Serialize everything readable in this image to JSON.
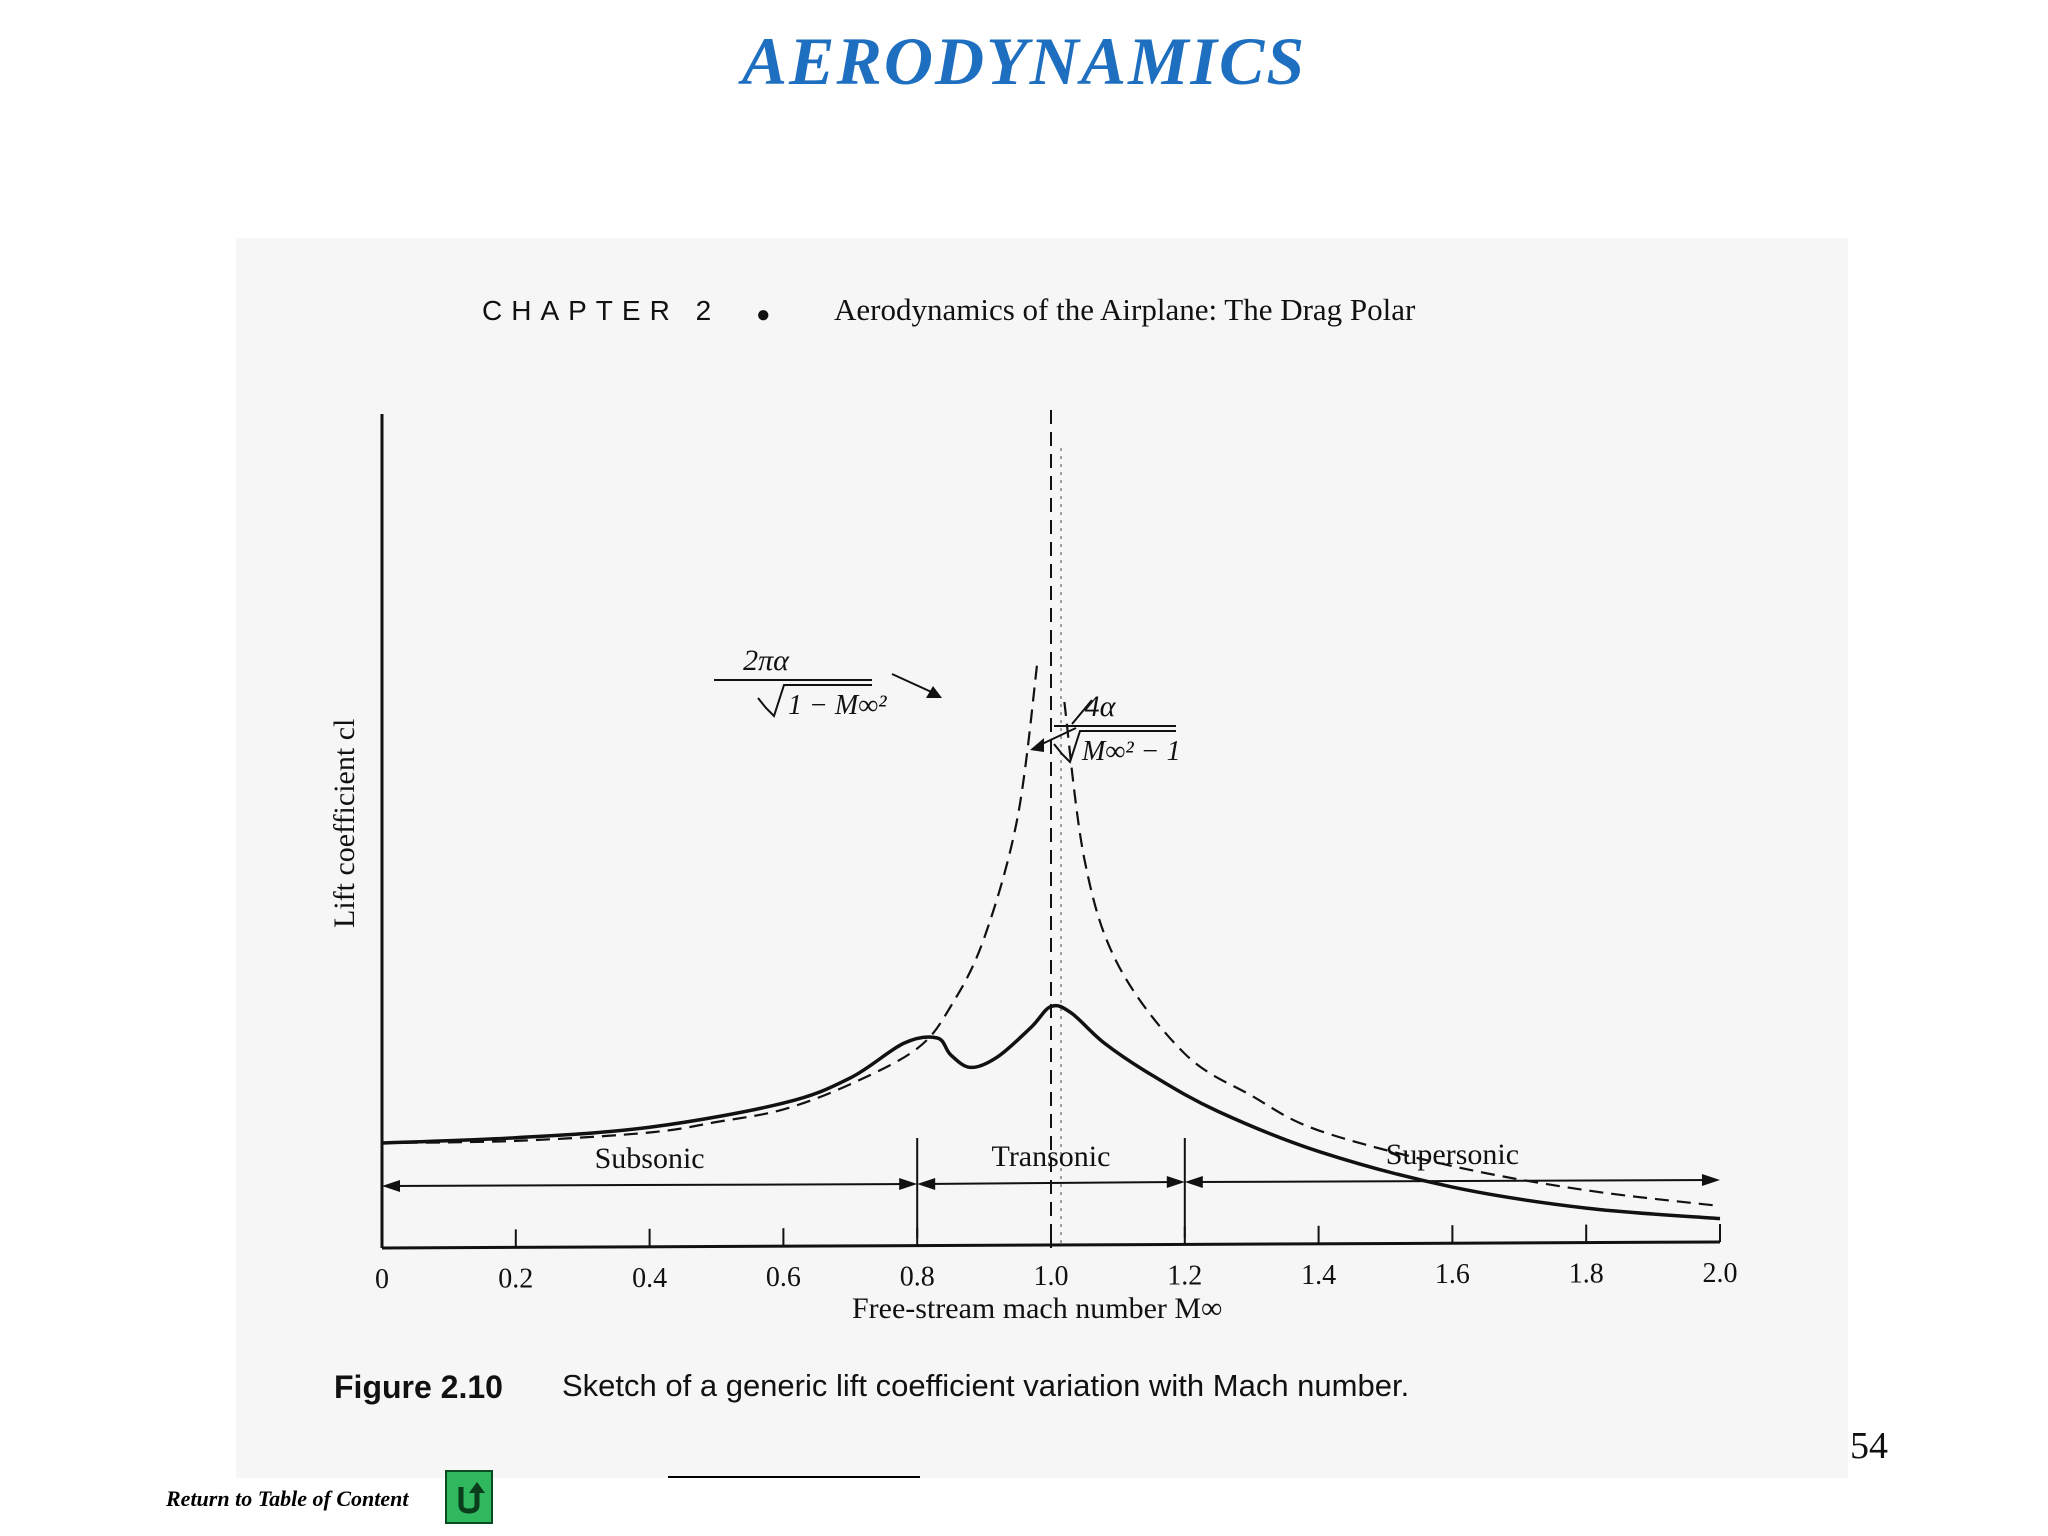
{
  "slide": {
    "title": "AERODYNAMICS",
    "page_number": "54",
    "return_link": "Return to Table of Content",
    "return_icon": "return-arrow-icon",
    "accent_color": "#1f6fc0"
  },
  "book_page": {
    "chapter": "CHAPTER 2",
    "bullet": "●",
    "chapter_title": "Aerodynamics of the Airplane: The Drag Polar",
    "figure_label": "Figure 2.10",
    "caption": "Sketch of a generic lift coefficient variation with Mach number."
  },
  "chart_data": {
    "type": "line",
    "title": "",
    "xlabel": "Free-stream mach number M∞",
    "ylabel": "Lift coefficient cl",
    "xlim": [
      0,
      2.0
    ],
    "x_ticks": [
      0,
      0.2,
      0.4,
      0.6,
      0.8,
      1.0,
      1.2,
      1.4,
      1.6,
      1.8,
      2.0
    ],
    "x_tick_labels": [
      "0",
      "0.2",
      "0.4",
      "0.6",
      "0.8",
      "1.0",
      "1.2",
      "1.4",
      "1.6",
      "1.8",
      "2.0"
    ],
    "regions": [
      {
        "label": "Subsonic",
        "from": 0,
        "to": 0.8
      },
      {
        "label": "Transonic",
        "from": 0.8,
        "to": 1.2
      },
      {
        "label": "Supersonic",
        "from": 1.2,
        "to": 2.0
      }
    ],
    "asymptote_x": 1.0,
    "annotations": [
      {
        "label": "2πα / √(1 − M∞²)",
        "numerator": "2πα",
        "denominator": "1 − M∞²",
        "applies_to": "subsonic theory"
      },
      {
        "label": "4α / √(M∞² − 1)",
        "numerator": "4α",
        "denominator": "M∞² − 1",
        "applies_to": "supersonic theory"
      }
    ],
    "series": [
      {
        "style": "solid",
        "points": [
          [
            0,
            1.0
          ],
          [
            0.2,
            1.05
          ],
          [
            0.4,
            1.15
          ],
          [
            0.6,
            1.38
          ],
          [
            0.7,
            1.62
          ],
          [
            0.78,
            1.95
          ],
          [
            0.83,
            2.0
          ],
          [
            0.85,
            1.84
          ],
          [
            0.88,
            1.72
          ],
          [
            0.92,
            1.82
          ],
          [
            0.97,
            2.1
          ],
          [
            1.0,
            2.3
          ],
          [
            1.03,
            2.24
          ],
          [
            1.08,
            1.95
          ],
          [
            1.15,
            1.65
          ],
          [
            1.25,
            1.3
          ],
          [
            1.4,
            0.92
          ],
          [
            1.6,
            0.58
          ],
          [
            1.8,
            0.38
          ],
          [
            2.0,
            0.28
          ]
        ]
      },
      {
        "style": "dashed",
        "points": [
          [
            0,
            1.0
          ],
          [
            0.2,
            1.02
          ],
          [
            0.4,
            1.1
          ],
          [
            0.5,
            1.2
          ],
          [
            0.6,
            1.32
          ],
          [
            0.7,
            1.56
          ],
          [
            0.8,
            1.9
          ],
          [
            0.85,
            2.3
          ],
          [
            0.9,
            2.95
          ],
          [
            0.95,
            4.1
          ],
          [
            0.98,
            5.6
          ]
        ]
      },
      {
        "style": "dashed",
        "points": [
          [
            1.02,
            5.2
          ],
          [
            1.05,
            3.7
          ],
          [
            1.1,
            2.7
          ],
          [
            1.2,
            1.85
          ],
          [
            1.3,
            1.45
          ],
          [
            1.4,
            1.12
          ],
          [
            1.6,
            0.78
          ],
          [
            1.8,
            0.55
          ],
          [
            2.0,
            0.4
          ]
        ]
      }
    ]
  }
}
